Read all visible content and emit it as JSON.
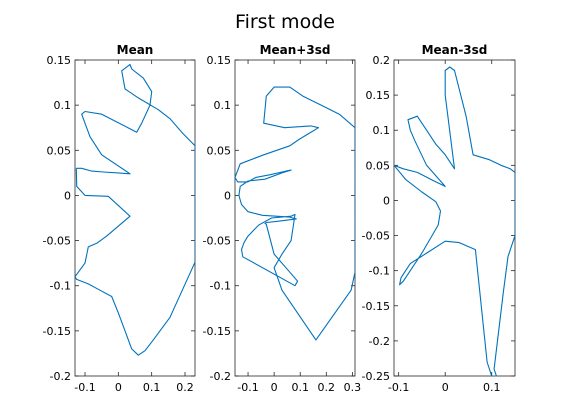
{
  "figure": {
    "title": "First mode"
  },
  "colors": {
    "line": "#0072BD",
    "axes": "#262626"
  },
  "chart_data": [
    {
      "type": "line",
      "title": "Mean",
      "xlabel": "",
      "ylabel": "",
      "xlim": [
        -0.13,
        0.23
      ],
      "ylim": [
        -0.2,
        0.15
      ],
      "xticks": [
        -0.1,
        0,
        0.1,
        0.2
      ],
      "xtick_labels": [
        "-0.1",
        "0",
        "0.1",
        "0.2"
      ],
      "yticks": [
        -0.2,
        -0.15,
        -0.1,
        -0.05,
        0,
        0.05,
        0.1,
        0.15
      ],
      "ytick_labels": [
        "-0.2",
        "-0.15",
        "-0.1",
        "-0.05",
        "0",
        "0.05",
        "0.1",
        "0.15"
      ],
      "grid": false,
      "series": [
        {
          "x": [
            -0.126,
            -0.11,
            -0.08,
            -0.045,
            0.0,
            0.035,
            -0.05,
            -0.085,
            -0.105,
            -0.11,
            -0.1,
            -0.05,
            0.055,
            0.07,
            0.095,
            0.1,
            0.075,
            0.04,
            0.035,
            0.01,
            0.02,
            0.06,
            0.12,
            0.155,
            0.19,
            0.23,
            0.23,
            0.155,
            0.105,
            0.08,
            0.06,
            0.04,
            0.0,
            -0.02,
            -0.06,
            -0.09,
            -0.125,
            -0.13,
            -0.12,
            -0.1,
            -0.09,
            -0.065,
            -0.035,
            0.035,
            -0.03,
            -0.1,
            -0.125,
            -0.126
          ],
          "y": [
            0.03,
            0.03,
            0.027,
            0.026,
            0.025,
            0.024,
            0.045,
            0.065,
            0.085,
            0.09,
            0.093,
            0.09,
            0.07,
            0.08,
            0.1,
            0.115,
            0.13,
            0.14,
            0.145,
            0.138,
            0.118,
            0.108,
            0.095,
            0.085,
            0.07,
            0.055,
            -0.074,
            -0.135,
            -0.16,
            -0.172,
            -0.177,
            -0.17,
            -0.13,
            -0.112,
            -0.104,
            -0.098,
            -0.093,
            -0.09,
            -0.085,
            -0.075,
            -0.057,
            -0.053,
            -0.045,
            -0.023,
            -0.001,
            0.0,
            0.01,
            0.03
          ]
        }
      ]
    },
    {
      "type": "line",
      "title": "Mean+3sd",
      "xlabel": "",
      "ylabel": "",
      "xlim": [
        -0.15,
        0.31
      ],
      "ylim": [
        -0.2,
        0.15
      ],
      "xticks": [
        -0.1,
        0,
        0.1,
        0.2,
        0.3
      ],
      "xtick_labels": [
        "-0.1",
        "0",
        "0.1",
        "0.2",
        "0.3"
      ],
      "yticks": [
        -0.2,
        -0.15,
        -0.1,
        -0.05,
        0,
        0.05,
        0.1,
        0.15
      ],
      "ytick_labels": [
        "-0.2",
        "-0.15",
        "-0.1",
        "-0.05",
        "0",
        "0.05",
        "0.1",
        "0.15"
      ],
      "grid": false,
      "series": [
        {
          "x": [
            -0.1,
            -0.07,
            -0.015,
            0.045,
            0.065,
            0.03,
            -0.035,
            -0.1,
            -0.13,
            -0.135,
            -0.125,
            -0.1,
            -0.045,
            0.06,
            0.085,
            0.005,
            -0.03,
            -0.035,
            -0.03,
            0.0,
            0.045,
            0.09,
            0.08,
            -0.12,
            -0.125,
            -0.115,
            -0.1,
            -0.06,
            -0.01,
            0.065,
            0.08,
            0.065,
            0.03,
            0.0,
            0.03,
            0.16,
            0.295,
            0.31,
            0.31,
            0.25,
            0.18,
            0.11,
            0.06,
            0.0,
            -0.03,
            -0.04,
            0.04,
            0.14,
            0.17,
            0.13,
            0.095,
            0.06,
            -0.04,
            -0.13,
            -0.15,
            -0.14,
            -0.1
          ],
          "y": [
            0.015,
            0.02,
            0.023,
            0.027,
            0.028,
            0.025,
            0.018,
            0.016,
            0.01,
            0.0,
            -0.01,
            -0.018,
            -0.022,
            -0.024,
            -0.026,
            -0.029,
            -0.03,
            -0.031,
            -0.032,
            -0.065,
            -0.08,
            -0.095,
            -0.1,
            -0.068,
            -0.06,
            -0.052,
            -0.045,
            -0.033,
            -0.025,
            -0.023,
            -0.021,
            -0.05,
            -0.065,
            -0.08,
            -0.105,
            -0.16,
            -0.105,
            -0.085,
            0.075,
            0.09,
            0.1,
            0.11,
            0.12,
            0.12,
            0.11,
            0.08,
            0.075,
            0.077,
            0.075,
            0.068,
            0.062,
            0.055,
            0.045,
            0.035,
            0.02,
            0.015,
            0.015
          ]
        }
      ]
    },
    {
      "type": "line",
      "title": "Mean-3sd",
      "xlabel": "",
      "ylabel": "",
      "xlim": [
        -0.11,
        0.15
      ],
      "ylim": [
        -0.25,
        0.2
      ],
      "xticks": [
        -0.1,
        0,
        0.1
      ],
      "xtick_labels": [
        "-0.1",
        "0",
        "0.1"
      ],
      "yticks": [
        -0.25,
        -0.2,
        -0.15,
        -0.1,
        -0.05,
        0,
        0.05,
        0.1,
        0.15,
        0.2
      ],
      "ytick_labels": [
        "-0.25",
        "-0.2",
        "-0.15",
        "-0.1",
        "-0.05",
        "0",
        "0.05",
        "0.1",
        "0.15",
        "0.2"
      ],
      "grid": false,
      "series": [
        {
          "x": [
            -0.11,
            -0.09,
            -0.06,
            -0.025,
            0.0,
            -0.04,
            -0.065,
            -0.075,
            -0.08,
            -0.06,
            -0.04,
            -0.02,
            0.0,
            0.02,
            0.0,
            0.0,
            0.01,
            0.02,
            0.045,
            0.06,
            0.095,
            0.12,
            0.14,
            0.15,
            0.15,
            0.135,
            0.125,
            0.105,
            0.11,
            0.1,
            0.09,
            0.065,
            0.03,
            0.0,
            -0.04,
            -0.075,
            -0.095,
            -0.098,
            -0.09,
            -0.05,
            -0.015,
            -0.01,
            -0.02,
            -0.05,
            -0.085,
            -0.11
          ],
          "y": [
            0.05,
            0.045,
            0.04,
            0.028,
            0.02,
            0.05,
            0.085,
            0.1,
            0.115,
            0.12,
            0.1,
            0.08,
            0.065,
            0.045,
            0.15,
            0.185,
            0.19,
            0.185,
            0.12,
            0.065,
            0.058,
            0.05,
            0.045,
            0.04,
            -0.05,
            -0.08,
            -0.13,
            -0.24,
            -0.25,
            -0.25,
            -0.23,
            -0.07,
            -0.06,
            -0.058,
            -0.075,
            -0.09,
            -0.11,
            -0.12,
            -0.115,
            -0.075,
            -0.035,
            -0.015,
            -0.002,
            0.012,
            0.03,
            0.05
          ]
        }
      ]
    }
  ]
}
